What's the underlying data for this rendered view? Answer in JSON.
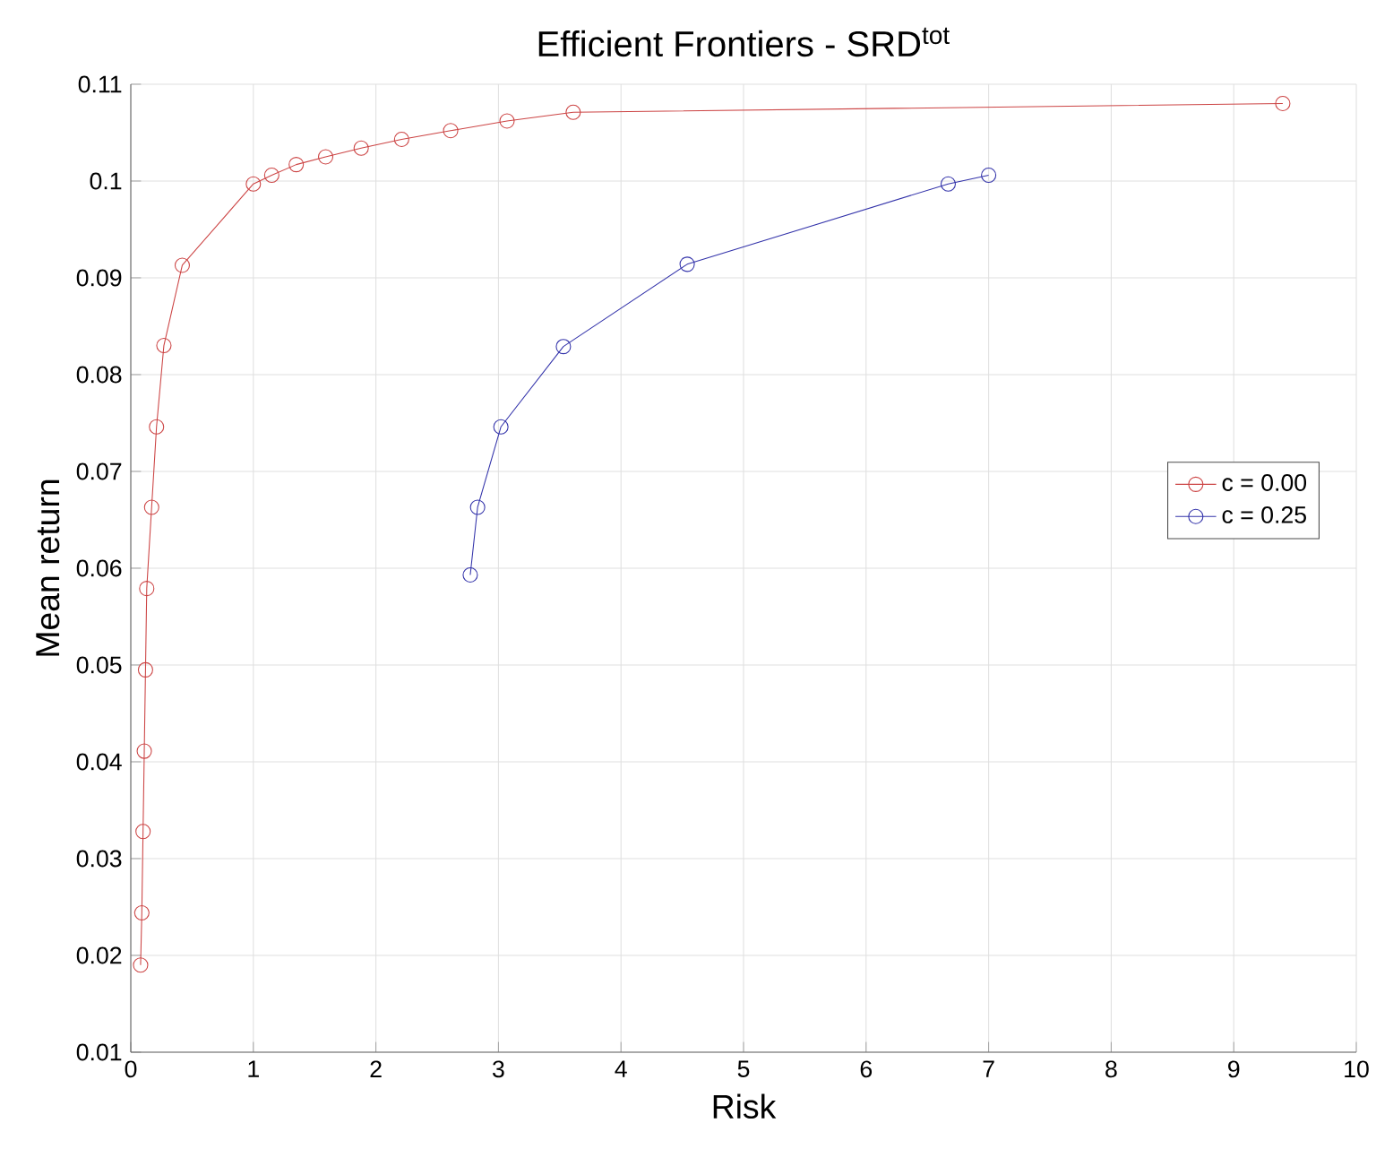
{
  "chart_data": {
    "type": "line",
    "title": "Efficient Frontiers - SRD$^{tot}$",
    "xlabel": "Risk",
    "ylabel": "Mean return",
    "xlim": [
      0,
      10
    ],
    "ylim": [
      0.01,
      0.11
    ],
    "xticks": [
      0,
      1,
      2,
      3,
      4,
      5,
      6,
      7,
      8,
      9,
      10
    ],
    "yticks": [
      0.01,
      0.02,
      0.03,
      0.04,
      0.05,
      0.06,
      0.07,
      0.08,
      0.09,
      0.1,
      0.11
    ],
    "grid": true,
    "legend": "right",
    "marker": "circle",
    "line_style": "solid",
    "series": [
      {
        "name": "c = 0.00",
        "color": "#cc4444",
        "x": [
          0.08,
          0.09,
          0.1,
          0.11,
          0.12,
          0.13,
          0.17,
          0.21,
          0.27,
          0.42,
          1.0,
          1.15,
          1.35,
          1.59,
          1.88,
          2.21,
          2.61,
          3.07,
          3.61,
          9.4
        ],
        "values": [
          0.019,
          0.0244,
          0.0328,
          0.0411,
          0.0495,
          0.0579,
          0.0663,
          0.0746,
          0.083,
          0.0913,
          0.0997,
          0.1006,
          0.1017,
          0.1025,
          0.1034,
          0.1043,
          0.1052,
          0.1062,
          0.1071,
          0.108
        ]
      },
      {
        "name": "c = 0.25",
        "color": "#3333aa",
        "x": [
          2.77,
          2.83,
          3.02,
          3.53,
          4.54,
          6.67,
          7.0
        ],
        "values": [
          0.0593,
          0.0663,
          0.0746,
          0.0829,
          0.0914,
          0.0997,
          0.1006
        ]
      }
    ]
  }
}
